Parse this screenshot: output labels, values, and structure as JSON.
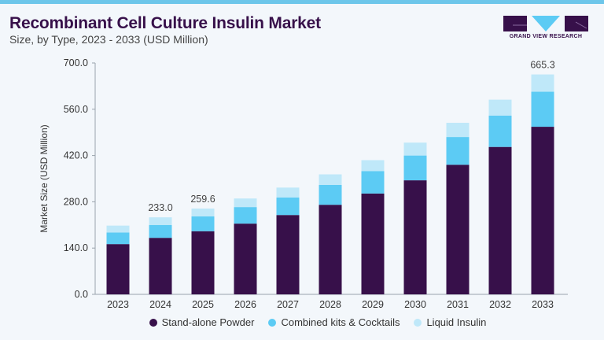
{
  "header": {
    "title": "Recombinant Cell Culture Insulin Market",
    "subtitle": "Size, by Type, 2023 - 2033 (USD Million)",
    "logo_text": "GRAND VIEW RESEARCH"
  },
  "colors": {
    "accent": "#6dc6ea",
    "stand_alone": "#37104a",
    "combined": "#5ccbf4",
    "liquid": "#bfe8f9"
  },
  "chart_data": {
    "type": "bar",
    "stacked": true,
    "title": "Recombinant Cell Culture Insulin Market",
    "subtitle": "Size, by Type, 2023 - 2033 (USD Million)",
    "xlabel": "",
    "ylabel": "Market Size (USD Million)",
    "ylim": [
      0,
      700
    ],
    "yticks": [
      "0.0",
      "140.0",
      "280.0",
      "420.0",
      "560.0",
      "700.0"
    ],
    "grid": false,
    "legend_position": "bottom",
    "categories": [
      "2023",
      "2024",
      "2025",
      "2026",
      "2027",
      "2028",
      "2029",
      "2030",
      "2031",
      "2032",
      "2033"
    ],
    "series": [
      {
        "name": "Stand-alone Powder",
        "color": "#37104a",
        "values": [
          152,
          171,
          191,
          214,
          240,
          271,
          305,
          345,
          392,
          446,
          507
        ]
      },
      {
        "name": "Combined kits & Cocktails",
        "color": "#5ccbf4",
        "values": [
          35,
          39,
          45,
          50,
          53,
          60,
          68,
          75,
          84,
          95,
          106
        ]
      },
      {
        "name": "Liquid Insulin",
        "color": "#bfe8f9",
        "values": [
          21,
          23,
          23.6,
          26,
          30,
          32,
          33,
          39,
          43,
          48,
          52.3
        ]
      }
    ],
    "data_labels": [
      {
        "category": "2024",
        "text": "233.0"
      },
      {
        "category": "2025",
        "text": "259.6"
      },
      {
        "category": "2033",
        "text": "665.3"
      }
    ]
  }
}
